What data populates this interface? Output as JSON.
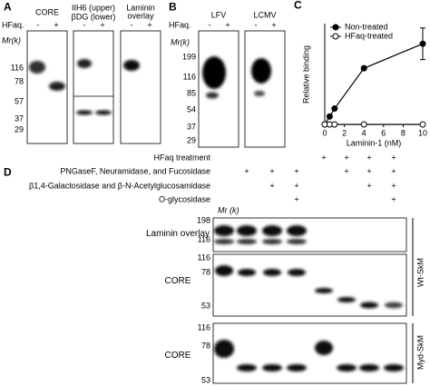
{
  "panel_a": {
    "label": "A",
    "hfaq": "HFaq.",
    "mr": "Mr(k)",
    "markers": [
      116,
      78,
      57,
      37,
      29
    ],
    "blots": [
      {
        "title": "CORE",
        "lanes": [
          "-",
          "+"
        ]
      },
      {
        "title_upper": "IIH6 (upper)",
        "title_lower": "βDG (lower)",
        "lanes": [
          "-",
          "+"
        ]
      },
      {
        "title": "Laminin overlay",
        "lanes": [
          "-",
          "+"
        ]
      }
    ]
  },
  "panel_b": {
    "label": "B",
    "hfaq": "HFaq.",
    "mr": "Mr(k)",
    "markers": [
      199,
      116,
      85,
      54,
      37,
      29
    ],
    "blots": [
      {
        "title": "LFV",
        "lanes": [
          "-",
          "+"
        ]
      },
      {
        "title": "LCMV",
        "lanes": [
          "-",
          "+"
        ]
      }
    ]
  },
  "chart_data": {
    "type": "line",
    "panel_label": "C",
    "y_label": "Relative binding",
    "x_label": "Laminin-1 (nM)",
    "x": [
      0,
      0.5,
      1,
      4,
      10
    ],
    "xlim": [
      0,
      10
    ],
    "xticks": [
      0,
      2,
      4,
      6,
      8,
      10
    ],
    "ylim": [
      0,
      700
    ],
    "legend": "upper left",
    "series": [
      {
        "name": "Non-treated",
        "color": "#000000",
        "marker": "filled",
        "values": [
          0,
          55,
          110,
          390,
          560
        ],
        "errors": [
          null,
          null,
          null,
          null,
          110
        ]
      },
      {
        "name": "HFaq-treated",
        "color": "#000000",
        "marker": "open",
        "values": [
          0,
          0,
          0,
          0,
          0
        ]
      }
    ]
  },
  "panel_d": {
    "label": "D",
    "mr": "Mr (k)",
    "treatments": [
      {
        "label": "HFaq treatment",
        "signs": [
          null,
          null,
          null,
          null,
          "+",
          "+",
          "+",
          "+"
        ]
      },
      {
        "label": "PNGaseF, Neuramidase, and Fucosidase",
        "signs": [
          null,
          "+",
          "+",
          "+",
          null,
          "+",
          "+",
          "+"
        ]
      },
      {
        "label": "β1,4-Galactosidase and β-N-Acetylglucosamidase",
        "signs": [
          null,
          null,
          "+",
          "+",
          null,
          null,
          "+",
          "+"
        ]
      },
      {
        "label": "O-glycosidase",
        "signs": [
          null,
          null,
          null,
          "+",
          null,
          null,
          null,
          "+"
        ]
      }
    ],
    "blots": [
      {
        "title": "Laminin overlay",
        "markers": [
          198,
          116
        ]
      },
      {
        "title": "CORE",
        "markers": [
          116,
          78,
          53
        ]
      },
      {
        "title": "CORE",
        "markers": [
          116,
          78,
          53
        ]
      }
    ],
    "groups": [
      "Wt-SkM",
      "Myd-SkM"
    ]
  }
}
